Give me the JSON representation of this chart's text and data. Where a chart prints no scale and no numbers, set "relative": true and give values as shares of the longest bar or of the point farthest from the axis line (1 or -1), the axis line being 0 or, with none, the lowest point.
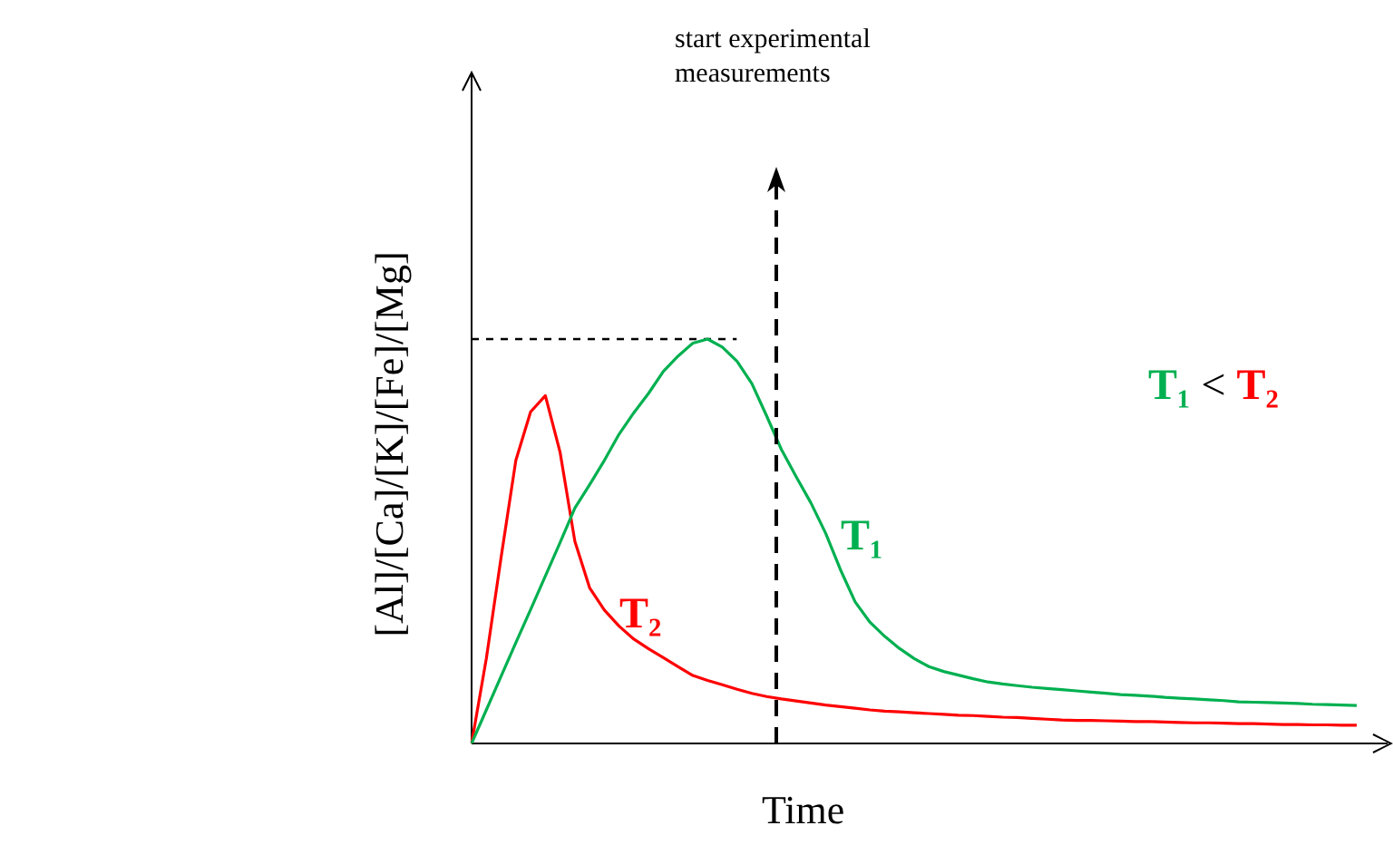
{
  "chart_data": {
    "type": "line",
    "relative": true,
    "xlabel": "Time",
    "ylabel": "[Al]/[Ca]/[K]/[Fe]/[Mg]",
    "marker": "none",
    "line_style": "solid",
    "categories": [
      null,
      null,
      null,
      null,
      null,
      null,
      null,
      null,
      null,
      null,
      null,
      null,
      null,
      null,
      null,
      null,
      null,
      null,
      null,
      null,
      null,
      null,
      null,
      null,
      null,
      null,
      null,
      null,
      null,
      null,
      null,
      null,
      null,
      null,
      null,
      null,
      null,
      null,
      null,
      null,
      null,
      null,
      null,
      null,
      null,
      null,
      null,
      null,
      null,
      null,
      null,
      null,
      null,
      null,
      null,
      null,
      null,
      null,
      null,
      null,
      null
    ],
    "series": [
      {
        "name": "T₁",
        "color": "#00b050",
        "values": [
          0,
          0.083,
          0.166,
          0.249,
          0.331,
          0.414,
          0.497,
          0.582,
          0.64,
          0.7,
          0.765,
          0.818,
          0.866,
          0.92,
          0.958,
          0.99,
          1,
          0.98,
          0.945,
          0.89,
          0.81,
          0.727,
          0.66,
          0.595,
          0.52,
          0.43,
          0.35,
          0.3,
          0.265,
          0.235,
          0.21,
          0.19,
          0.178,
          0.169,
          0.16,
          0.152,
          0.147,
          0.143,
          0.139,
          0.136,
          0.133,
          0.13,
          0.127,
          0.124,
          0.121,
          0.119,
          0.117,
          0.114,
          0.112,
          0.11,
          0.108,
          0.106,
          0.103,
          0.102,
          0.101,
          0.1,
          0.099,
          0.097,
          0.096,
          0.095,
          0.094
        ]
      },
      {
        "name": "T₂",
        "color": "#ff0000",
        "values": [
          0,
          0.21,
          0.46,
          0.7,
          0.82,
          0.86,
          0.72,
          0.5,
          0.385,
          0.33,
          0.29,
          0.258,
          0.234,
          0.212,
          0.19,
          0.168,
          0.156,
          0.145,
          0.134,
          0.124,
          0.116,
          0.11,
          0.105,
          0.1,
          0.095,
          0.091,
          0.087,
          0.083,
          0.08,
          0.078,
          0.076,
          0.074,
          0.072,
          0.07,
          0.069,
          0.067,
          0.065,
          0.064,
          0.062,
          0.06,
          0.058,
          0.057,
          0.057,
          0.056,
          0.055,
          0.054,
          0.054,
          0.053,
          0.052,
          0.051,
          0.051,
          0.05,
          0.049,
          0.049,
          0.048,
          0.047,
          0.047,
          0.046,
          0.046,
          0.045,
          0.045
        ]
      }
    ],
    "ref_lines": [
      {
        "axis": "y",
        "value": 1,
        "line_style": "dashed",
        "color": "#000000"
      }
    ],
    "annotations": [
      "start experimental measurements",
      "T₁ < T₂"
    ]
  }
}
